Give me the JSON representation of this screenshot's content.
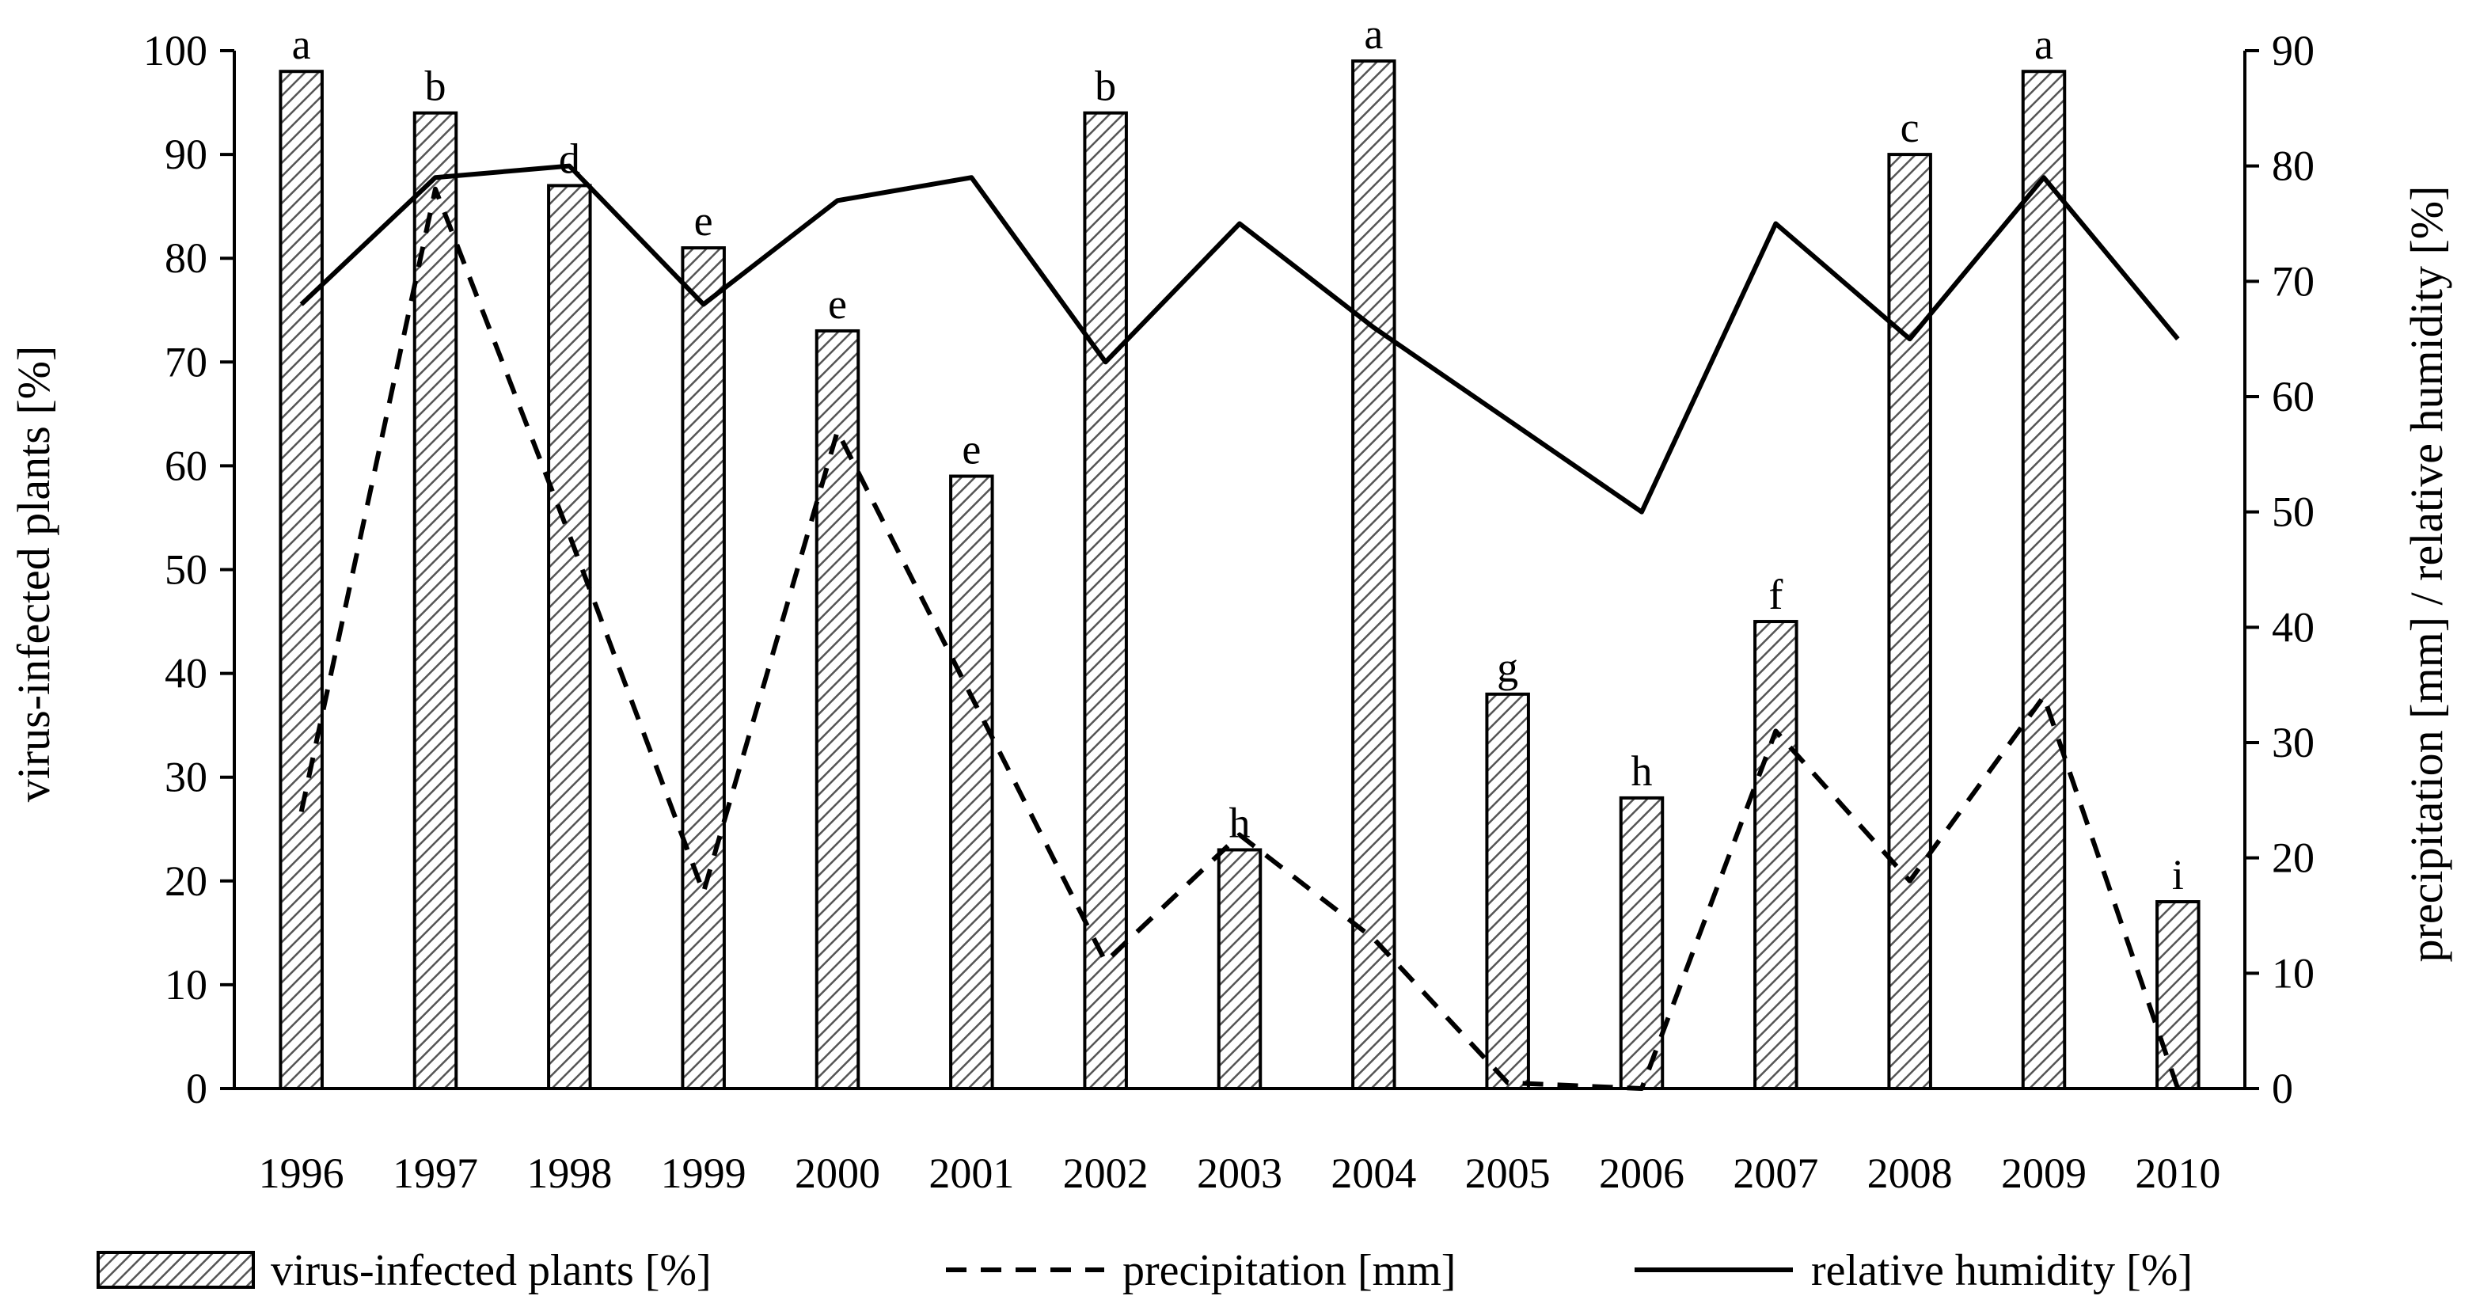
{
  "chart_data": {
    "type": "bar",
    "categories": [
      "1996",
      "1997",
      "1998",
      "1999",
      "2000",
      "2001",
      "2002",
      "2003",
      "2004",
      "2005",
      "2006",
      "2007",
      "2008",
      "2009",
      "2010"
    ],
    "series": [
      {
        "name": "virus-infected plants  [%]",
        "type": "bar",
        "axis": "left",
        "values": [
          98,
          94,
          87,
          81,
          73,
          59,
          94,
          23,
          99,
          38,
          28,
          45,
          90,
          98,
          18
        ],
        "labels": [
          "a",
          "b",
          "d",
          "e",
          "e",
          "e",
          "b",
          "h",
          "a",
          "g",
          "h",
          "f",
          "c",
          "a",
          "i"
        ]
      },
      {
        "name": "precipitation [mm]",
        "type": "line",
        "style": "dashed",
        "axis": "right",
        "values": [
          24,
          78,
          48,
          17,
          57,
          34,
          11,
          22,
          13,
          0.5,
          0,
          31,
          18,
          34,
          0
        ]
      },
      {
        "name": "relative humidity [%]",
        "type": "line",
        "style": "solid",
        "axis": "right",
        "values": [
          68,
          79,
          80,
          68,
          77,
          79,
          63,
          75,
          66,
          58,
          50,
          75,
          65,
          79,
          65
        ]
      }
    ],
    "ylabel": "virus-infected plants [%]",
    "y2label": "precipitation [mm] / relative humidity [%]",
    "ylim": [
      0,
      100
    ],
    "y2lim": [
      0,
      90
    ],
    "yticks": [
      "0",
      "10",
      "20",
      "30",
      "40",
      "50",
      "60",
      "70",
      "80",
      "90",
      "100"
    ],
    "y2ticks": [
      "0",
      "10",
      "20",
      "30",
      "40",
      "50",
      "60",
      "70",
      "80",
      "90"
    ],
    "grid": false,
    "legend_position": "bottom",
    "colors": {
      "bar_fill": "#ffffff",
      "bar_hatch": "#000000",
      "line": "#000000"
    }
  }
}
